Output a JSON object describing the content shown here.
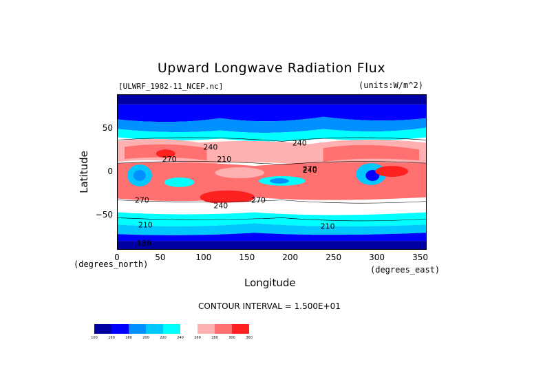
{
  "title": "Upward Longwave Radiation Flux",
  "file_label": "[ULWRF_1982-11_NCEP.nc]",
  "units_label": "(units:W/m^2)",
  "contour_interval": "CONTOUR INTERVAL = 1.500E+01",
  "x_axis": {
    "label": "Longitude",
    "units_note": "(degrees_east)",
    "ticks": [
      "0",
      "50",
      "100",
      "150",
      "200",
      "250",
      "300",
      "350"
    ],
    "range": [
      0,
      357.5
    ]
  },
  "y_axis": {
    "label": "Latitude",
    "units_note": "(degrees_north)",
    "ticks": [
      "50",
      "0",
      "−50"
    ],
    "range": [
      -90,
      90
    ]
  },
  "contour_labels": [
    "240",
    "210",
    "270",
    "240",
    "240",
    "270",
    "270",
    "240",
    "270",
    "210",
    "210",
    "180"
  ],
  "colorbar": {
    "levels": [
      "100",
      "160",
      "180",
      "200",
      "220",
      "240",
      "260",
      "280",
      "300",
      "360"
    ],
    "colors": [
      "#0000a0",
      "#0000ff",
      "#0090ff",
      "#00c8ff",
      "#00ffff",
      "#ffffff",
      "#ffb0b0",
      "#ff7070",
      "#ff2020"
    ]
  }
}
